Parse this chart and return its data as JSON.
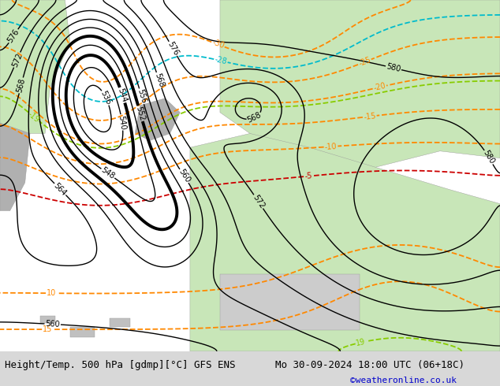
{
  "title_left": "Height/Temp. 500 hPa [gdmp][°C] GFS ENS",
  "title_right": "Mo 30-09-2024 18:00 UTC (06+18C)",
  "credit": "©weatheronline.co.uk",
  "background_color": "#e8e8e8",
  "land_color": "#c8e6b8",
  "sea_color": "#d8d8d8",
  "contour_color_black": "#000000",
  "contour_color_orange": "#ff8800",
  "contour_color_green": "#88cc00",
  "contour_color_cyan": "#00bbcc",
  "contour_color_red": "#cc0000",
  "thick_contour_values": [
    544,
    552
  ],
  "contour_label_fontsize": 7,
  "title_fontsize": 9,
  "credit_fontsize": 8,
  "figsize": [
    6.34,
    4.9
  ],
  "dpi": 100
}
